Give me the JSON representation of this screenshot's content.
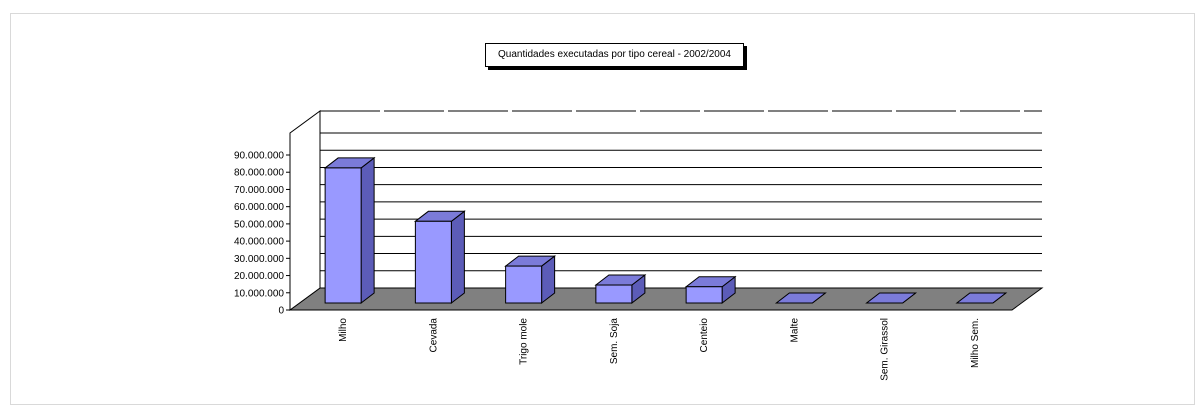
{
  "chart_data": {
    "type": "bar",
    "title": "Quantidades executadas por tipo cereal - 2002/2004",
    "categories": [
      "Milho",
      "Cevada",
      "Trigo mole",
      "Sem. Soja",
      "Centeio",
      "Malte",
      "Sem. Girassol",
      "Milho Sem."
    ],
    "values": [
      82500000,
      51500000,
      25500000,
      14500000,
      13500000,
      0,
      0,
      0
    ],
    "ylim": [
      0,
      90000000
    ],
    "yticks": [
      "0",
      "10.000.000",
      "20.000.000",
      "30.000.000",
      "40.000.000",
      "50.000.000",
      "60.000.000",
      "70.000.000",
      "80.000.000",
      "90.000.000"
    ],
    "bar_color": "#9999ff",
    "floor_color": "#808080",
    "grid": true,
    "style": "3d-column"
  }
}
